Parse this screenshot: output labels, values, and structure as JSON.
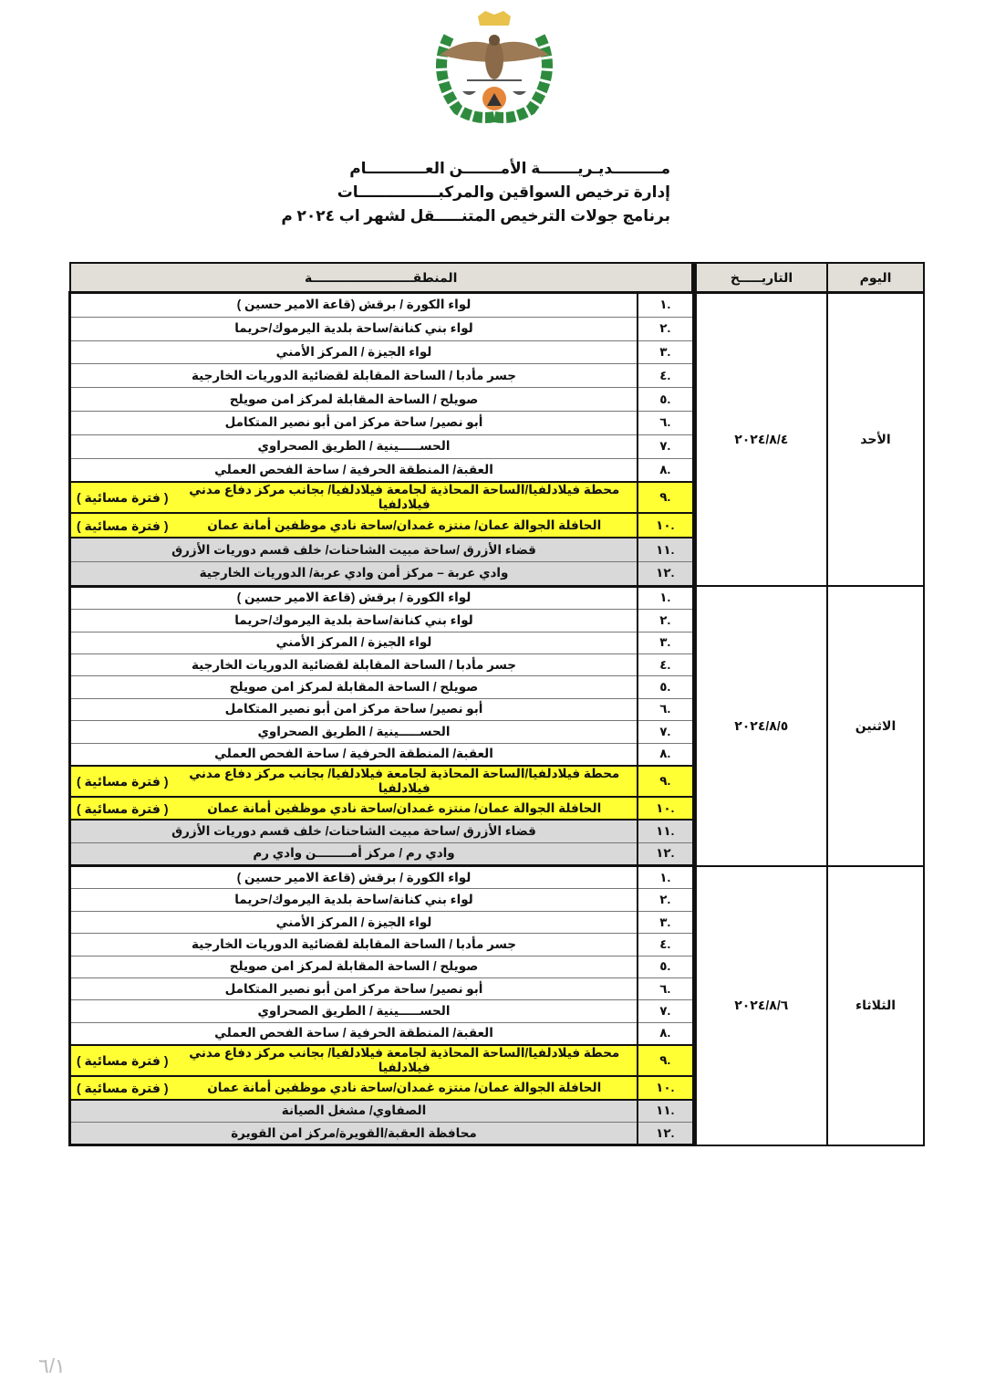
{
  "header": {
    "line1": "مـــــــــديـريـــــــة الأمـــــــن العـــــــــــام",
    "line2": "إدارة ترخيص السواقين والمركبـــــــــــــــات",
    "line3": "برنامج جولات الترخيص المتنـــــقل لشهر اب ٢٠٢٤ م"
  },
  "table": {
    "headers": {
      "day": "اليوم",
      "date": "التاريـــــخ",
      "region": "المنطقـــــــــــــــــــــــة"
    },
    "days": [
      {
        "day": "الأحد",
        "date": "٢٠٢٤/٨/٤",
        "rows": [
          {
            "num": ".١",
            "text": "لواء الكورة / برقش (قاعة الامير حسين )"
          },
          {
            "num": ".٢",
            "text": "لواء بني كنانة/ساحة بلدية اليرموك/حريما"
          },
          {
            "num": ".٣",
            "text": "لواء الجيزة / المركز الأمني"
          },
          {
            "num": ".٤",
            "text": "جسر مأدبا / الساحة المقابلة لقضائية الدوريات الخارجية"
          },
          {
            "num": ".٥",
            "text": "صويلح / الساحة المقابلة لمركز امن صويلح"
          },
          {
            "num": ".٦",
            "text": "أبو نصير/ ساحة مركز امن أبو نصير المتكامل"
          },
          {
            "num": ".٧",
            "text": "الحســـــينية / الطريق الصحراوي"
          },
          {
            "num": ".٨",
            "text": "العقبة/ المنطقة الحرفية / ساحة الفحص العملي"
          },
          {
            "num": ".٩",
            "text": "محطة فيلادلفيا/الساحة المحاذية لجامعة فيلادلفيا/ بجانب مركز دفاع مدني فيلادلفيا",
            "note": "( فترة مسائية )",
            "style": "yellow"
          },
          {
            "num": ".١٠",
            "text": "الحافلة الجوالة عمان/ منتزه غمدان/ساحة نادي موظفين أمانة عمان",
            "note": "( فترة مسائية )",
            "style": "yellow"
          },
          {
            "num": ".١١",
            "text": "قضاء الأزرق /ساحة مبيت الشاحنات/ خلف قسم دوريات الأزرق",
            "style": "gray"
          },
          {
            "num": ".١٢",
            "text": "وادي عربة – مركز أمن وادي عربة/ الدوريات الخارجية",
            "style": "gray"
          }
        ]
      },
      {
        "day": "الاثنين",
        "date": "٢٠٢٤/٨/٥",
        "rows": [
          {
            "num": ".١",
            "text": "لواء الكورة / برقش (قاعة الامير حسين )"
          },
          {
            "num": ".٢",
            "text": "لواء بني كنانة/ساحة بلدية اليرموك/حريما"
          },
          {
            "num": ".٣",
            "text": "لواء الجيزة / المركز الأمني"
          },
          {
            "num": ".٤",
            "text": "جسر مأدبا / الساحة المقابلة لقضائية الدوريات الخارجية"
          },
          {
            "num": ".٥",
            "text": "صويلح / الساحة المقابلة لمركز امن صويلح"
          },
          {
            "num": ".٦",
            "text": "أبو نصير/ ساحة مركز امن أبو نصير المتكامل"
          },
          {
            "num": ".٧",
            "text": "الحســـــينية / الطريق الصحراوي"
          },
          {
            "num": ".٨",
            "text": "العقبة/ المنطقة الحرفية / ساحة الفحص العملي"
          },
          {
            "num": ".٩",
            "text": "محطة فيلادلفيا/الساحة المحاذية لجامعة فيلادلفيا/ بجانب مركز دفاع مدني فيلادلفيا",
            "note": "( فترة مسائية )",
            "style": "yellow"
          },
          {
            "num": ".١٠",
            "text": "الحافلة الجوالة عمان/ منتزه غمدان/ساحة نادي موظفين أمانة عمان",
            "note": "( فترة مسائية )",
            "style": "yellow"
          },
          {
            "num": ".١١",
            "text": "قضاء الأزرق /ساحة مبيت الشاحنات/ خلف قسم دوريات الأزرق",
            "style": "gray"
          },
          {
            "num": ".١٢",
            "text": "وادي رم / مركز أمــــــــن وادي رم",
            "style": "gray"
          }
        ]
      },
      {
        "day": "الثلاثاء",
        "date": "٢٠٢٤/٨/٦",
        "rows": [
          {
            "num": ".١",
            "text": "لواء الكورة / برقش (قاعة الامير حسين )"
          },
          {
            "num": ".٢",
            "text": "لواء بني كنانة/ساحة بلدية اليرموك/حريما"
          },
          {
            "num": ".٣",
            "text": "لواء الجيزة / المركز الأمني"
          },
          {
            "num": ".٤",
            "text": "جسر مأدبا / الساحة المقابلة لقضائية الدوريات الخارجية"
          },
          {
            "num": ".٥",
            "text": "صويلح / الساحة المقابلة لمركز امن صويلح"
          },
          {
            "num": ".٦",
            "text": "أبو نصير/ ساحة مركز امن أبو نصير المتكامل"
          },
          {
            "num": ".٧",
            "text": "الحســـــينية / الطريق الصحراوي"
          },
          {
            "num": ".٨",
            "text": "العقبة/ المنطقة الحرفية / ساحة الفحص العملي"
          },
          {
            "num": ".٩",
            "text": "محطة فيلادلفيا/الساحة المحاذية لجامعة فيلادلفيا/ بجانب مركز دفاع مدني فيلادلفيا",
            "note": "( فترة مسائية )",
            "style": "yellow"
          },
          {
            "num": ".١٠",
            "text": "الحافلة الجوالة عمان/ منتزه غمدان/ساحة نادي موظفين أمانة عمان",
            "note": "( فترة مسائية )",
            "style": "yellow"
          },
          {
            "num": ".١١",
            "text": "الصفاوي/ مشغل الصيانة",
            "style": "gray"
          },
          {
            "num": ".١٢",
            "text": "محافظة العقبة/القويرة/مركز امن القويرة",
            "style": "gray"
          }
        ]
      }
    ]
  },
  "footer": {
    "page_number": "٦/١"
  },
  "colors": {
    "highlight_yellow": "#ffff33",
    "row_gray": "#d9d9d9",
    "header_bg": "#e2dfd8"
  },
  "logo": {
    "icon": "public-security-emblem-icon"
  }
}
